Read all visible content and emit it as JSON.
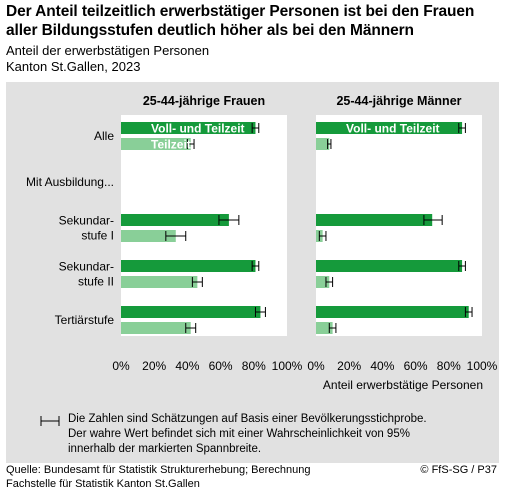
{
  "header": {
    "title_line1": "Der Anteil teilzeitlich erwerbstätiger Personen ist bei den Frauen",
    "title_line2": "aller Bildungsstufen deutlich höher als bei den Männern",
    "subtitle_line1": "Anteil der erwerbstätigen Personen",
    "subtitle_line2": "Kanton St.Gallen, 2023"
  },
  "chart_data": {
    "type": "bar",
    "orientation": "horizontal",
    "xlabel": "Anteil erwerbstätige Personen",
    "xlim": [
      0,
      100
    ],
    "x_ticks": [
      "0%",
      "20%",
      "40%",
      "60%",
      "80%",
      "100%"
    ],
    "categories": [
      [
        "Alle"
      ],
      [
        "Mit Ausbildung..."
      ],
      [
        "Sekundar-",
        "stufe I"
      ],
      [
        "Sekundar-",
        "stufe II"
      ],
      [
        "Tertiärstufe"
      ]
    ],
    "panels": [
      {
        "title": "25-44-jährige Frauen",
        "series": [
          {
            "name": "Voll- und Teilzeit",
            "color": "#159a3b",
            "values": [
              81,
              null,
              65,
              81,
              84
            ],
            "ci": [
              [
                79,
                83
              ],
              null,
              [
                59,
                71
              ],
              [
                79,
                83
              ],
              [
                81,
                87
              ]
            ]
          },
          {
            "name": "Teilzeit",
            "color": "#89cf98",
            "values": [
              42,
              null,
              33,
              46,
              42
            ],
            "ci": [
              [
                40,
                44
              ],
              null,
              [
                27,
                39
              ],
              [
                43,
                49
              ],
              [
                39,
                45
              ]
            ]
          }
        ]
      },
      {
        "title": "25-44-jährige Männer",
        "series": [
          {
            "name": "Voll- und Teilzeit",
            "color": "#159a3b",
            "values": [
              88,
              null,
              70,
              88,
              92
            ],
            "ci": [
              [
                86,
                90
              ],
              null,
              [
                65,
                76
              ],
              [
                86,
                90
              ],
              [
                90,
                94
              ]
            ]
          },
          {
            "name": "Teilzeit",
            "color": "#89cf98",
            "values": [
              8,
              null,
              4,
              8,
              10
            ],
            "ci": [
              [
                7,
                9
              ],
              null,
              [
                2,
                6
              ],
              [
                6,
                10
              ],
              [
                8,
                12
              ]
            ]
          }
        ]
      }
    ]
  },
  "note": {
    "line1": "Die Zahlen sind Schätzungen auf Basis einer Bevölkerungsstichprobe.",
    "line2": "Der wahre Wert befindet sich mit einer Wahrscheinlichkeit von 95%",
    "line3": "innerhalb der markierten Spannbreite."
  },
  "footer": {
    "source_line1": "Quelle: Bundesamt für Statistik Strukturerhebung; Berechnung",
    "source_line2": "Fachstelle für Statistik Kanton St.Gallen",
    "copyright": "© FfS-SG / P37"
  }
}
